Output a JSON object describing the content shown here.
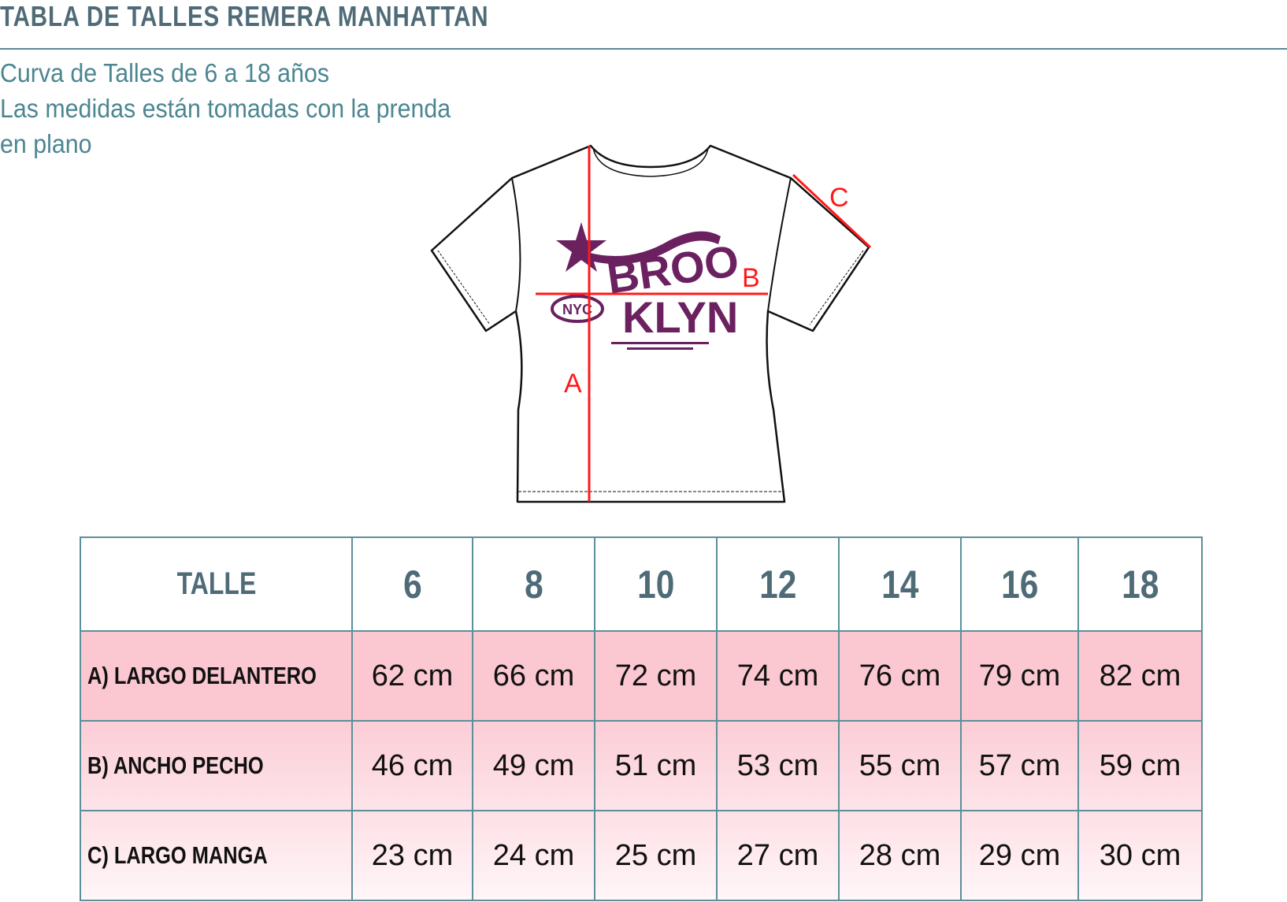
{
  "header": {
    "title": "TABLA DE TALLES REMERA MANHATTAN",
    "subtitle_lines": [
      "Curva de Talles de 6 a 18 años",
      "Las medidas están tomadas con la prenda",
      "en plano"
    ]
  },
  "diagram": {
    "labels": {
      "a": "A",
      "b": "B",
      "c": "C"
    },
    "print_text": [
      "BROO",
      "KLYN",
      "NYC"
    ],
    "colors": {
      "measure_line": "#ff1a1a",
      "print": "#6b2060"
    }
  },
  "table": {
    "header_label": "TALLE",
    "sizes": [
      "6",
      "8",
      "10",
      "12",
      "14",
      "16",
      "18"
    ],
    "rows": [
      {
        "label": "A) LARGO DELANTERO",
        "values": [
          "62 cm",
          "66 cm",
          "72 cm",
          "74 cm",
          "76 cm",
          "79 cm",
          "82 cm"
        ]
      },
      {
        "label": "B) ANCHO PECHO",
        "values": [
          "46 cm",
          "49 cm",
          "51 cm",
          "53 cm",
          "55 cm",
          "57 cm",
          "59 cm"
        ]
      },
      {
        "label": "C) LARGO MANGA",
        "values": [
          "23 cm",
          "24 cm",
          "25 cm",
          "27 cm",
          "28 cm",
          "29 cm",
          "30 cm"
        ]
      }
    ]
  }
}
